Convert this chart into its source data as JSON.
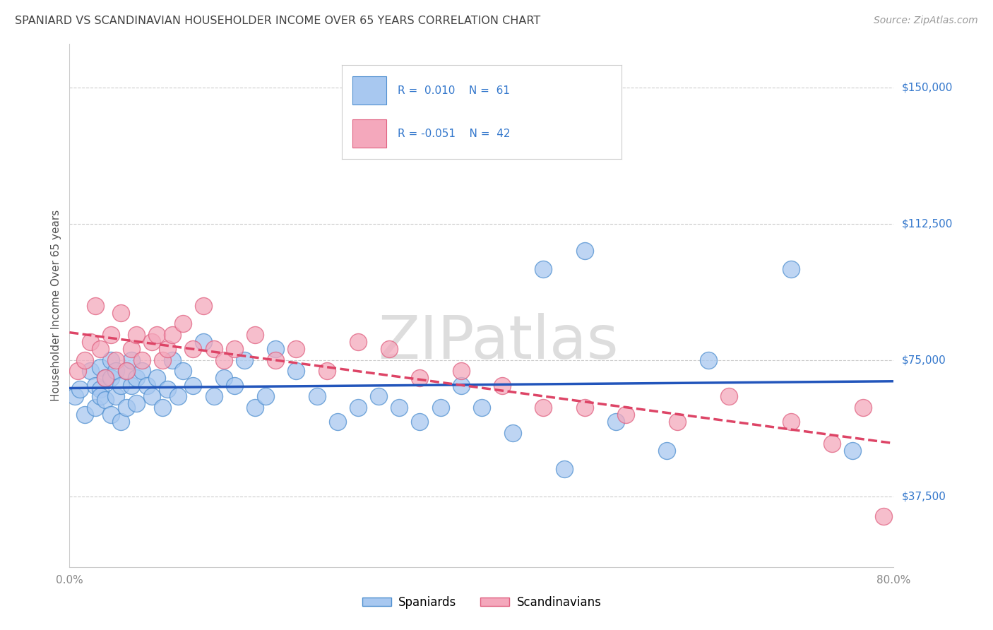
{
  "title": "SPANIARD VS SCANDINAVIAN HOUSEHOLDER INCOME OVER 65 YEARS CORRELATION CHART",
  "source": "Source: ZipAtlas.com",
  "ylabel": "Householder Income Over 65 years",
  "ytick_labels": [
    "$37,500",
    "$75,000",
    "$112,500",
    "$150,000"
  ],
  "ytick_values": [
    37500,
    75000,
    112500,
    150000
  ],
  "xmin": 0.0,
  "xmax": 0.8,
  "ymin": 18000,
  "ymax": 162000,
  "legend_blue_r": "R =  0.010",
  "legend_blue_n": "N =  61",
  "legend_pink_r": "R = -0.051",
  "legend_pink_n": "N =  42",
  "legend_label_blue": "Spaniards",
  "legend_label_pink": "Scandinavians",
  "blue_color": "#A8C8F0",
  "pink_color": "#F4A8BC",
  "blue_edge_color": "#5090D0",
  "pink_edge_color": "#E06080",
  "blue_line_color": "#2255BB",
  "pink_line_color": "#DD4466",
  "background_color": "#FFFFFF",
  "grid_color": "#CCCCCC",
  "title_color": "#444444",
  "source_color": "#999999",
  "legend_text_color": "#3377CC",
  "watermark_color": "#DDDDDD",
  "watermark": "ZIPatlas",
  "spaniards_x": [
    0.005,
    0.01,
    0.015,
    0.02,
    0.025,
    0.025,
    0.03,
    0.03,
    0.03,
    0.035,
    0.035,
    0.04,
    0.04,
    0.04,
    0.045,
    0.045,
    0.05,
    0.05,
    0.055,
    0.055,
    0.06,
    0.06,
    0.065,
    0.065,
    0.07,
    0.075,
    0.08,
    0.085,
    0.09,
    0.095,
    0.1,
    0.105,
    0.11,
    0.12,
    0.13,
    0.14,
    0.15,
    0.16,
    0.17,
    0.18,
    0.19,
    0.2,
    0.22,
    0.24,
    0.26,
    0.28,
    0.3,
    0.32,
    0.34,
    0.36,
    0.38,
    0.4,
    0.43,
    0.46,
    0.48,
    0.5,
    0.53,
    0.58,
    0.62,
    0.7,
    0.76
  ],
  "spaniards_y": [
    65000,
    67000,
    60000,
    72000,
    68000,
    62000,
    73000,
    67000,
    65000,
    70000,
    64000,
    75000,
    70000,
    60000,
    72000,
    65000,
    68000,
    58000,
    72000,
    62000,
    75000,
    68000,
    70000,
    63000,
    72000,
    68000,
    65000,
    70000,
    62000,
    67000,
    75000,
    65000,
    72000,
    68000,
    80000,
    65000,
    70000,
    68000,
    75000,
    62000,
    65000,
    78000,
    72000,
    65000,
    58000,
    62000,
    65000,
    62000,
    58000,
    62000,
    68000,
    62000,
    55000,
    100000,
    45000,
    105000,
    58000,
    50000,
    75000,
    100000,
    50000
  ],
  "scandinavians_x": [
    0.008,
    0.015,
    0.02,
    0.025,
    0.03,
    0.035,
    0.04,
    0.045,
    0.05,
    0.055,
    0.06,
    0.065,
    0.07,
    0.08,
    0.085,
    0.09,
    0.095,
    0.1,
    0.11,
    0.12,
    0.13,
    0.14,
    0.15,
    0.16,
    0.18,
    0.2,
    0.22,
    0.25,
    0.28,
    0.31,
    0.34,
    0.38,
    0.42,
    0.46,
    0.5,
    0.54,
    0.59,
    0.64,
    0.7,
    0.74,
    0.77,
    0.79
  ],
  "scandinavians_y": [
    72000,
    75000,
    80000,
    90000,
    78000,
    70000,
    82000,
    75000,
    88000,
    72000,
    78000,
    82000,
    75000,
    80000,
    82000,
    75000,
    78000,
    82000,
    85000,
    78000,
    90000,
    78000,
    75000,
    78000,
    82000,
    75000,
    78000,
    72000,
    80000,
    78000,
    70000,
    72000,
    68000,
    62000,
    62000,
    60000,
    58000,
    65000,
    58000,
    52000,
    62000,
    32000
  ]
}
